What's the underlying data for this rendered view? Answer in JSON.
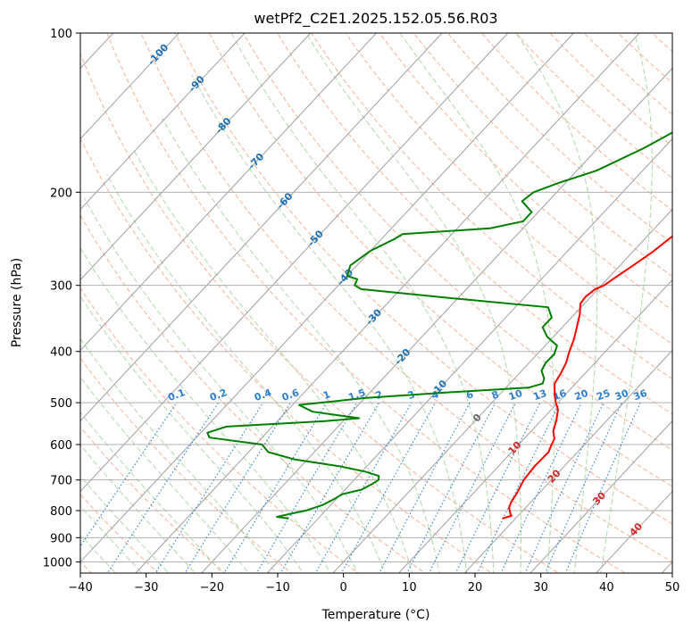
{
  "chart_data": {
    "type": "line",
    "title": "wetPf2_C2E1.2025.152.05.56.R03",
    "xlabel": "Temperature (°C)",
    "ylabel": "Pressure (hPa)",
    "xlim": [
      -40,
      50
    ],
    "ylim": [
      1050,
      100
    ],
    "y_scale": "log",
    "grid": true,
    "x_ticks": [
      -40,
      -30,
      -20,
      -10,
      0,
      10,
      20,
      30,
      40,
      50
    ],
    "y_ticks": [
      100,
      200,
      300,
      400,
      500,
      600,
      700,
      800,
      900,
      1000
    ],
    "skew_deg_per_log_decade": 75,
    "colors": {
      "temperature": "#ff0000",
      "dewpoint": "#008000",
      "isotherm": "#a0a0a0",
      "dry_adiabat": "#f4a582",
      "moist_adiabat": "#a6d5a0",
      "mixing_ratio": "#2c7fd6",
      "isotherm_label": "#1f6fb4",
      "dry_adiabat_label": "#d62728",
      "zero_label": "#666666"
    },
    "series": [
      {
        "points": [
          [
            828,
            18
          ],
          [
            818,
            19
          ],
          [
            810,
            18.5
          ],
          [
            790,
            17.5
          ],
          [
            770,
            17
          ],
          [
            740,
            16.6
          ],
          [
            700,
            15.8
          ],
          [
            660,
            15.5
          ],
          [
            620,
            15.6
          ],
          [
            600,
            15
          ],
          [
            585,
            14.6
          ],
          [
            565,
            13.3
          ],
          [
            540,
            12.3
          ],
          [
            515,
            11
          ],
          [
            500,
            9.7
          ],
          [
            480,
            8.2
          ],
          [
            460,
            6.8
          ],
          [
            440,
            6.3
          ],
          [
            420,
            5.6
          ],
          [
            400,
            4.5
          ],
          [
            380,
            3.5
          ],
          [
            360,
            2.2
          ],
          [
            340,
            0.8
          ],
          [
            325,
            -0.6
          ],
          [
            315,
            -0.8
          ],
          [
            305,
            -0.4
          ],
          [
            300,
            0.4
          ],
          [
            290,
            1
          ],
          [
            275,
            2
          ],
          [
            260,
            3
          ],
          [
            245,
            3.7
          ],
          [
            230,
            4.5
          ],
          [
            215,
            5.5
          ],
          [
            200,
            6.5
          ],
          [
            185,
            7.1
          ],
          [
            170,
            7.3
          ],
          [
            155,
            7.2
          ],
          [
            140,
            6.9
          ],
          [
            132,
            7
          ],
          [
            123,
            8.5
          ],
          [
            115,
            11
          ],
          [
            108,
            13.5
          ],
          [
            103,
            15
          ],
          [
            100,
            16.6
          ]
        ]
      },
      {
        "points": [
          [
            828,
            -14.5
          ],
          [
            822,
            -16.5
          ],
          [
            815,
            -15.5
          ],
          [
            800,
            -13
          ],
          [
            780,
            -11.2
          ],
          [
            760,
            -10.3
          ],
          [
            745,
            -9.8
          ],
          [
            730,
            -7.5
          ],
          [
            710,
            -6.6
          ],
          [
            700,
            -6.3
          ],
          [
            688,
            -6.8
          ],
          [
            675,
            -9.5
          ],
          [
            660,
            -14
          ],
          [
            640,
            -22
          ],
          [
            620,
            -27
          ],
          [
            600,
            -29
          ],
          [
            588,
            -35
          ],
          [
            582,
            -38
          ],
          [
            570,
            -39
          ],
          [
            555,
            -37
          ],
          [
            542,
            -23
          ],
          [
            535,
            -18
          ],
          [
            520,
            -26
          ],
          [
            505,
            -29
          ],
          [
            490,
            -20
          ],
          [
            478,
            -8
          ],
          [
            468,
            3.5
          ],
          [
            460,
            5
          ],
          [
            450,
            4.5
          ],
          [
            435,
            3
          ],
          [
            420,
            2.5
          ],
          [
            405,
            2.6
          ],
          [
            390,
            1.8
          ],
          [
            375,
            -1
          ],
          [
            360,
            -3
          ],
          [
            345,
            -3
          ],
          [
            330,
            -5
          ],
          [
            318,
            -20
          ],
          [
            305,
            -36
          ],
          [
            300,
            -37.5
          ],
          [
            292,
            -38
          ],
          [
            288,
            -40
          ],
          [
            275,
            -41
          ],
          [
            258,
            -40
          ],
          [
            245,
            -38
          ],
          [
            240,
            -37.5
          ],
          [
            234,
            -25
          ],
          [
            227,
            -21
          ],
          [
            218,
            -21
          ],
          [
            208,
            -24
          ],
          [
            200,
            -23.5
          ],
          [
            192,
            -21
          ],
          [
            182,
            -17
          ],
          [
            165,
            -13
          ],
          [
            150,
            -10
          ],
          [
            138,
            -8
          ],
          [
            130,
            -6
          ],
          [
            120,
            -4.5
          ],
          [
            110,
            -4
          ],
          [
            104,
            -2
          ],
          [
            100,
            2
          ]
        ]
      }
    ],
    "isotherm_labels": [
      "-100",
      "-90",
      "-80",
      "-70",
      "-60",
      "-50",
      "-40",
      "-30",
      "-20",
      "-10"
    ],
    "isotherm_label_values": [
      -100,
      -90,
      -80,
      -70,
      -60,
      -50,
      -40,
      -30,
      -20,
      -10
    ],
    "mixing_ratio_labels": [
      "0.1",
      "0.2",
      "0.4",
      "0.6",
      "1",
      "1.5",
      "2",
      "3",
      "4",
      "6",
      "8",
      "10",
      "13",
      "16",
      "20",
      "25",
      "30",
      "36"
    ],
    "mixing_ratio_values": [
      0.1,
      0.2,
      0.4,
      0.6,
      1,
      1.5,
      2,
      3,
      4,
      6,
      8,
      10,
      13,
      16,
      20,
      25,
      30,
      36
    ],
    "dry_adiabat_labels": [
      "10",
      "20",
      "30",
      "40"
    ],
    "dry_adiabat_label_values": [
      10,
      20,
      30,
      40
    ],
    "zero_label": "0"
  }
}
